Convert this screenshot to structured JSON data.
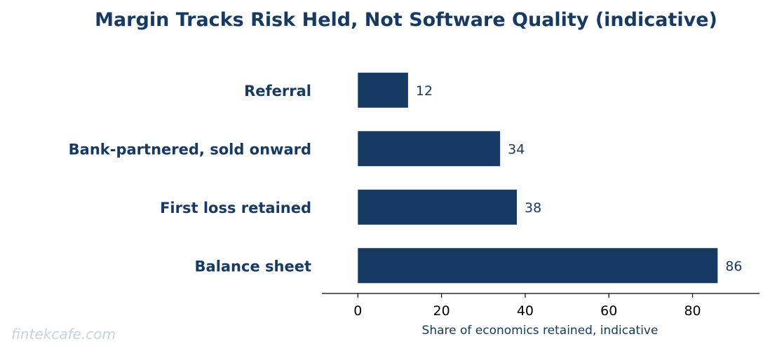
{
  "chart_data": {
    "type": "bar",
    "orientation": "horizontal",
    "title": "Margin Tracks Risk Held, Not Software Quality (indicative)",
    "xlabel": "Share of economics retained, indicative",
    "ylabel": "",
    "categories": [
      "Referral",
      "Bank-partnered, sold onward",
      "First loss retained",
      "Balance sheet"
    ],
    "values": [
      12,
      34,
      38,
      86
    ],
    "value_labels": [
      "12",
      "34",
      "38",
      "86"
    ],
    "xlim": [
      -8.6,
      96
    ],
    "xticks": [
      0,
      20,
      40,
      60,
      80
    ],
    "xtick_labels": [
      "0",
      "20",
      "40",
      "60",
      "80"
    ],
    "grid": false,
    "legend": "none",
    "bar_color": "#163a63",
    "text_color": "#163a63"
  },
  "watermark": "fintekcafe.com"
}
